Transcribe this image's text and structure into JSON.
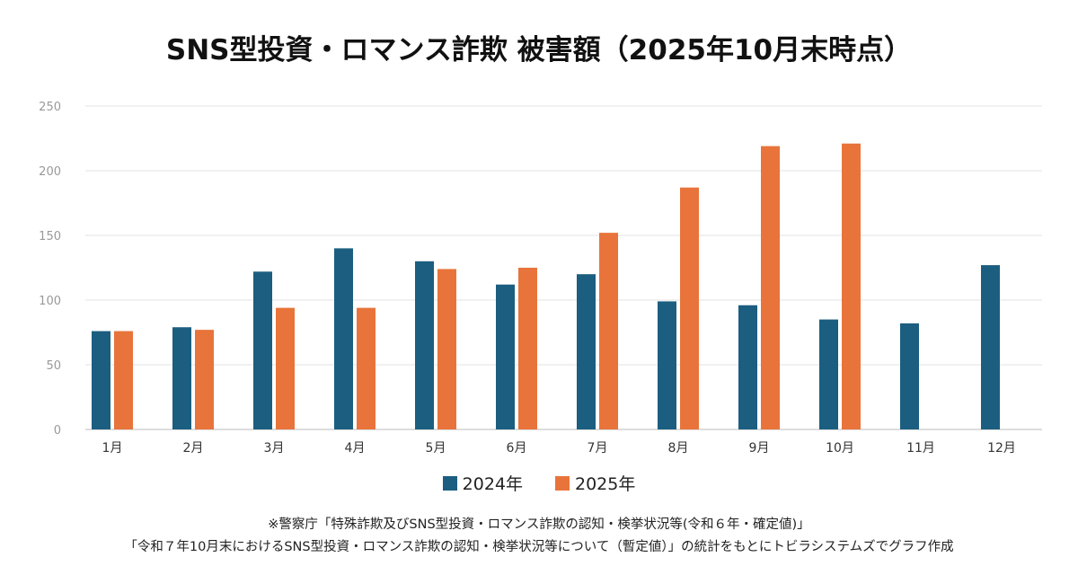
{
  "chart_data": {
    "type": "bar",
    "title": "SNS型投資・ロマンス詐欺 被害額（2025年10月末時点）",
    "categories": [
      "1月",
      "2月",
      "3月",
      "4月",
      "5月",
      "6月",
      "7月",
      "8月",
      "9月",
      "10月",
      "11月",
      "12月"
    ],
    "series": [
      {
        "name": "2024年",
        "color": "#1b5e80",
        "values": [
          76,
          79,
          122,
          140,
          130,
          112,
          120,
          99,
          96,
          85,
          82,
          127
        ]
      },
      {
        "name": "2025年",
        "color": "#e8743b",
        "values": [
          76,
          77,
          94,
          94,
          124,
          125,
          152,
          187,
          219,
          221,
          null,
          null
        ]
      }
    ],
    "yticks": [
      0,
      50,
      100,
      150,
      200,
      250
    ],
    "ylim": [
      0,
      250
    ],
    "xlabel": "",
    "ylabel": "",
    "grid": true,
    "legend": "bottom"
  },
  "footnote": {
    "line1": "※警察庁「特殊詐欺及びSNS型投資・ロマンス詐欺の認知・検挙状況等(令和６年・確定値)」",
    "line2": "「令和７年10月末におけるSNS型投資・ロマンス詐欺の認知・検挙状況等について（暫定値）」の統計をもとにトビラシステムズでグラフ作成"
  }
}
